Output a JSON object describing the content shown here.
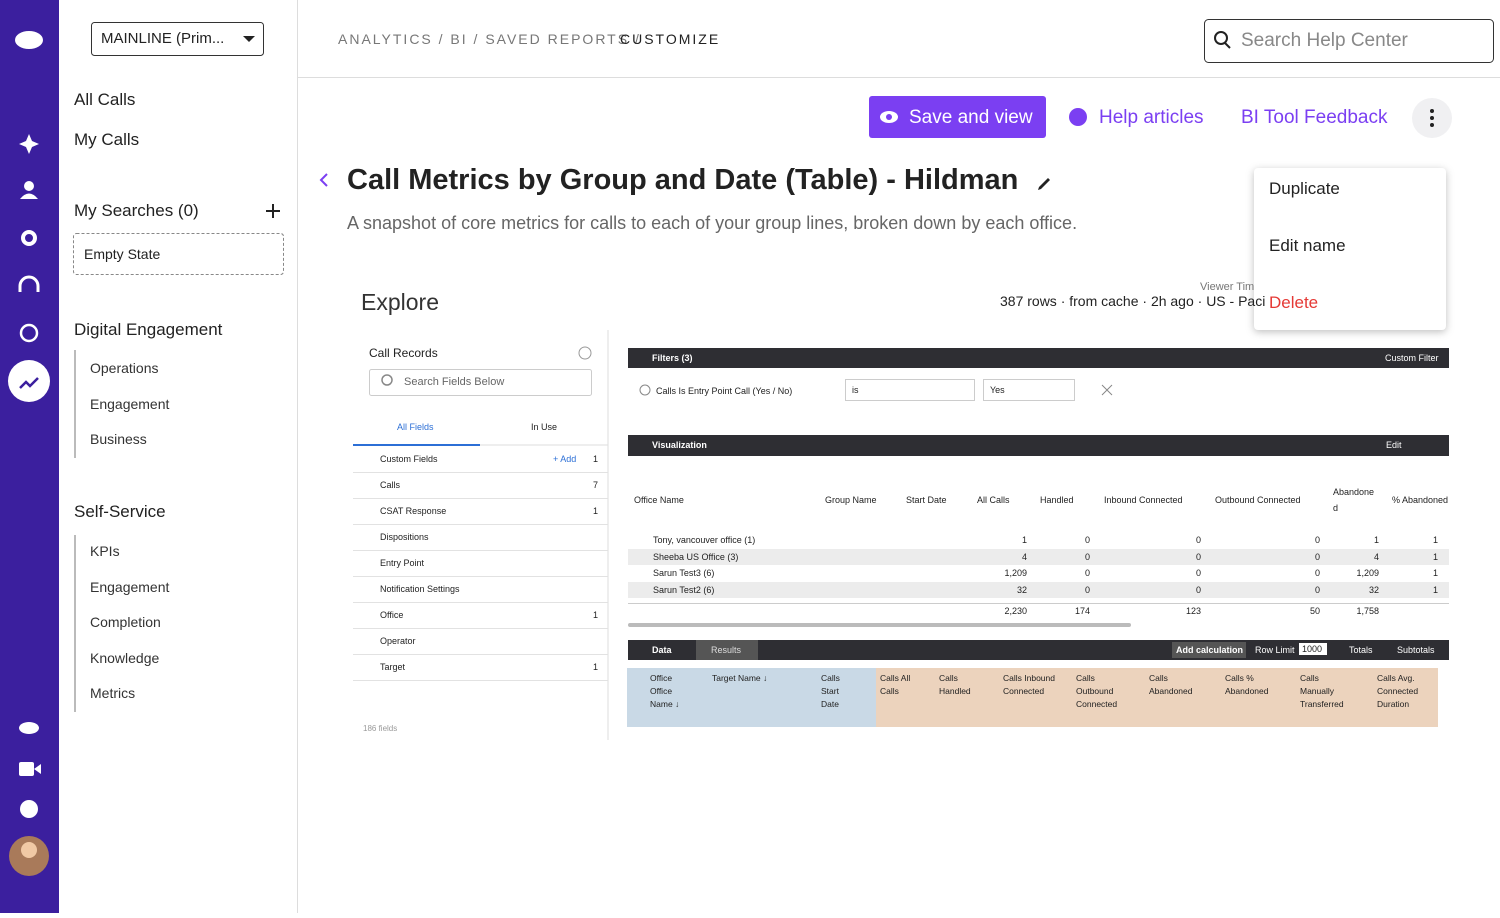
{
  "top_bar": {
    "workspace": "MAINLINE (Prim...",
    "breadcrumb": "ANALYTICS / BI / SAVED REPORTS / ",
    "breadcrumb_current": "CUSTOMIZE",
    "search_placeholder": "Search Help Center"
  },
  "sidebar": {
    "items": [
      "All Calls",
      "My Calls"
    ],
    "searches_title": "My Searches (0)",
    "empty_state": "Empty State",
    "sections": [
      {
        "title": "Digital Engagement",
        "items": [
          "Operations",
          "Engagement",
          "Business"
        ]
      },
      {
        "title": "Self-Service",
        "items": [
          "KPIs",
          "Engagement",
          "Completion",
          "Knowledge",
          "Metrics"
        ]
      }
    ]
  },
  "actions": {
    "save": "Save and view",
    "help": "Help articles",
    "feedback": "BI Tool Feedback"
  },
  "menu": {
    "items": [
      "Duplicate",
      "Edit name",
      "Delete"
    ]
  },
  "report": {
    "title": "Call Metrics by Group and Date (Table) - Hildman",
    "description": "A snapshot of core metrics for calls to each of your group lines, broken down by each office."
  },
  "explore": {
    "title": "Explore",
    "status": "387 rows · from cache · 2h ago · US - Paci",
    "viewer": "Viewer Tim",
    "panel": {
      "title": "Call Records",
      "search": "Search Fields Below",
      "tabs": [
        "All Fields",
        "In Use"
      ],
      "add": "+ Add",
      "fields": [
        [
          "Custom Fields",
          "1"
        ],
        [
          "Calls",
          "7"
        ],
        [
          "CSAT Response",
          "1"
        ],
        [
          "Dispositions",
          null
        ],
        [
          "Entry Point",
          null
        ],
        [
          "Notification Settings",
          null
        ],
        [
          "Office",
          "1"
        ],
        [
          "Operator",
          null
        ],
        [
          "Target",
          "1"
        ]
      ],
      "count": "186 fields"
    },
    "filters": {
      "title": "Filters (3)",
      "custom": "Custom Filter",
      "field": "Calls Is Entry Point Call (Yes / No)",
      "op": "is",
      "value": "Yes"
    },
    "visualization": {
      "title": "Visualization",
      "edit": "Edit",
      "headers": [
        "Office Name",
        "Group Name",
        "Start Date",
        "All Calls",
        "Handled",
        "Inbound Connected",
        "Outbound Connected",
        "Abandone d",
        "% Abandoned"
      ],
      "rows": [
        [
          "Tony, vancouver office   (1)",
          "",
          "",
          "1",
          "0",
          "0",
          "0",
          "1",
          "1"
        ],
        [
          "Sheeba US Office   (3)",
          "",
          "",
          "4",
          "0",
          "0",
          "0",
          "4",
          "1"
        ],
        [
          "Sarun Test3   (6)",
          "",
          "",
          "1,209",
          "0",
          "0",
          "0",
          "1,209",
          "1"
        ],
        [
          "Sarun Test2   (6)",
          "",
          "",
          "32",
          "0",
          "0",
          "0",
          "32",
          "1"
        ]
      ],
      "totals": [
        "",
        "",
        "",
        "2,230",
        "174",
        "123",
        "50",
        "1,758",
        ""
      ]
    },
    "data": {
      "title": "Data",
      "results": "Results",
      "add_calc": "Add calculation",
      "row_limit": "Row Limit",
      "row_limit_value": "1000",
      "totals": "Totals",
      "subtotals": "Subtotals",
      "headers": [
        "Office Office Name ↓",
        "Target Name ↓",
        "Calls Start Date",
        "Calls All Calls",
        "Calls Handled",
        "Calls Inbound Connected",
        "Calls Outbound Connected",
        "Calls Abandoned",
        "Calls % Abandoned",
        "Calls Manually Transferred",
        "Calls Avg. Connected Duration"
      ]
    }
  }
}
